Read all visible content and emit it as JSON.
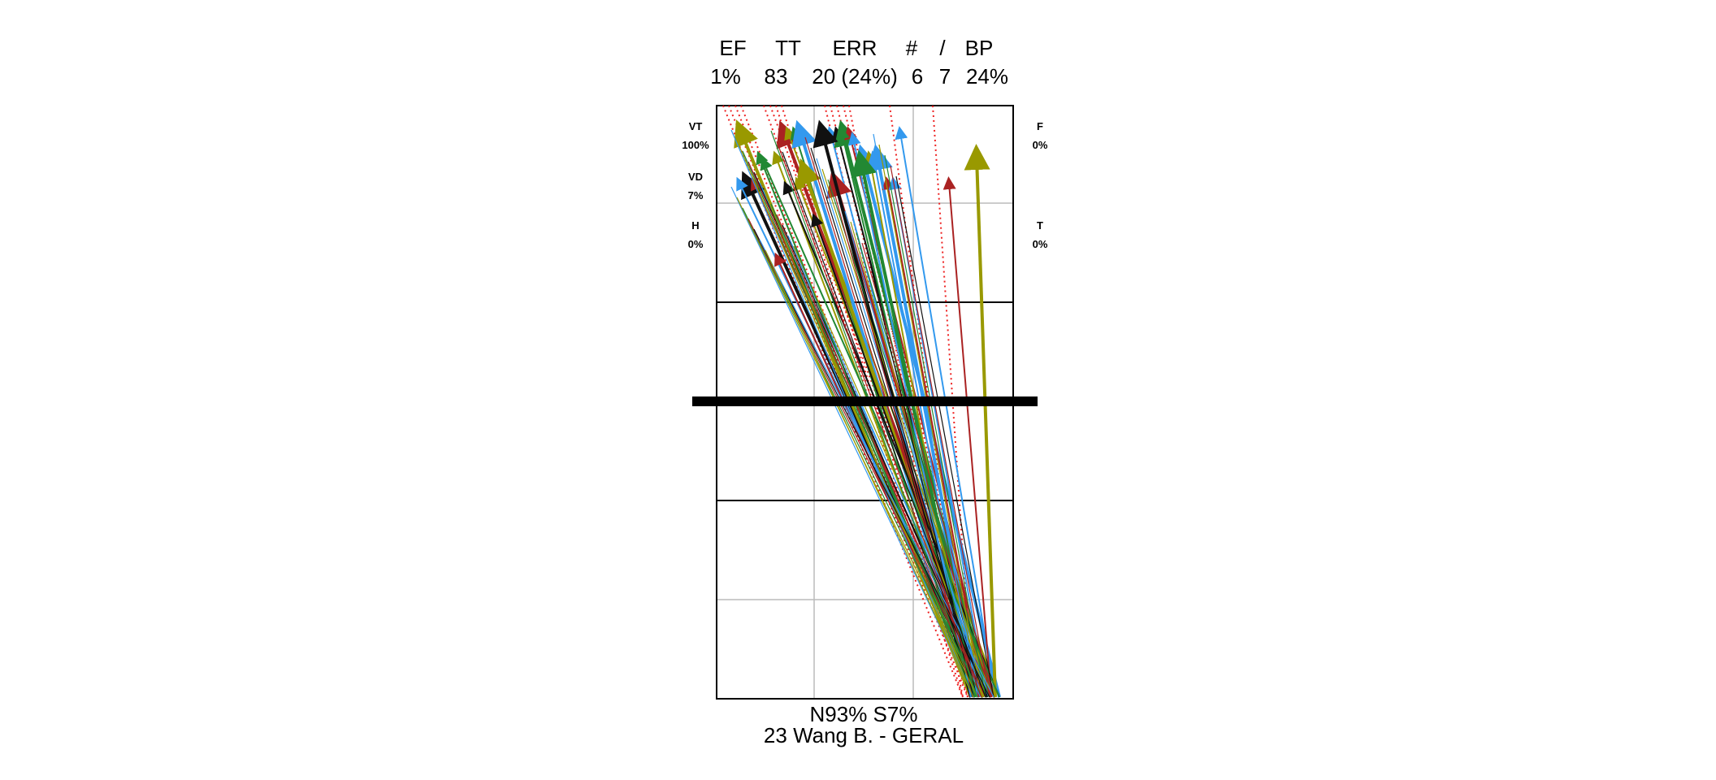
{
  "header": {
    "labels": [
      "EF",
      "TT",
      "ERR",
      "#",
      "/",
      "BP"
    ],
    "values": [
      "1%",
      "83",
      "20 (24%)",
      "6",
      "7",
      "24%"
    ]
  },
  "side_labels": {
    "left": [
      {
        "name": "VT",
        "value": "100%"
      },
      {
        "name": "VD",
        "value": "7%"
      },
      {
        "name": "H",
        "value": "0%"
      }
    ],
    "right": [
      {
        "name": "F",
        "value": "0%"
      },
      {
        "name": "T",
        "value": "0%"
      }
    ]
  },
  "footer": {
    "zones": "N93%  S7%",
    "player": "23 Wang B.  - GERAL"
  },
  "colors": {
    "blue": "#3399ee",
    "olive": "#999900",
    "green": "#228833",
    "darkred": "#aa2222",
    "black": "#111111",
    "net": "#000000",
    "error_dotted": "#ee2222"
  },
  "chart_data": {
    "type": "serve-trajectory",
    "court_sides": [
      "attack",
      "defense"
    ],
    "total_attempts": 83,
    "errors": 20,
    "error_pct": "24%",
    "efficiency": "1%",
    "summary": {
      "N": "93%",
      "S": "7%",
      "VT": "100%",
      "VD": "7%",
      "H": "0%",
      "F": "0%",
      "T": "0%"
    }
  }
}
